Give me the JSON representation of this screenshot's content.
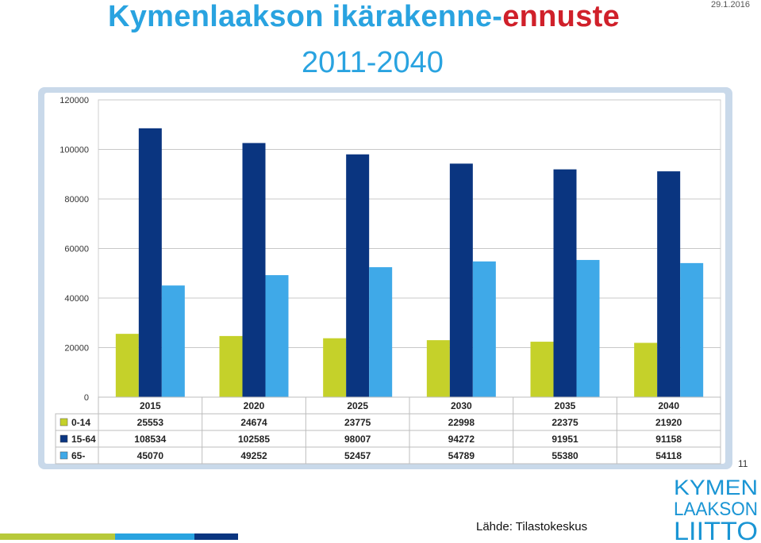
{
  "title": {
    "part1": "Kymenlaakson ikärakenne-",
    "part2": "ennuste",
    "line2": "2011-2040"
  },
  "date": "29.1.2016",
  "page_number": "11",
  "source": "Lähde: Tilastokeskus",
  "logo": {
    "line1": "KYMEN",
    "line2": "LAAKSON",
    "line3": "LIITTO"
  },
  "colors": {
    "title_blue": "#29a3e0",
    "title_red": "#d0202a",
    "series": [
      "#c5d12a",
      "#0a3580",
      "#3fa9e8"
    ],
    "footer": [
      "#b7c93a",
      "#29a3e0",
      "#0a3580"
    ],
    "logo_blue": "#1a95d4"
  },
  "chart_data": {
    "type": "bar",
    "categories": [
      "2015",
      "2020",
      "2025",
      "2030",
      "2035",
      "2040"
    ],
    "series": [
      {
        "name": "0-14",
        "values": [
          25553,
          24674,
          23775,
          22998,
          22375,
          21920
        ]
      },
      {
        "name": "15-64",
        "values": [
          108534,
          102585,
          98007,
          94272,
          91951,
          91158
        ]
      },
      {
        "name": "65-",
        "values": [
          45070,
          49252,
          52457,
          54789,
          55380,
          54118
        ]
      }
    ],
    "ylim": [
      0,
      120000
    ],
    "yticks": [
      "0",
      "20000",
      "40000",
      "60000",
      "80000",
      "100000",
      "120000"
    ],
    "grid": true,
    "legend": "data-table"
  }
}
